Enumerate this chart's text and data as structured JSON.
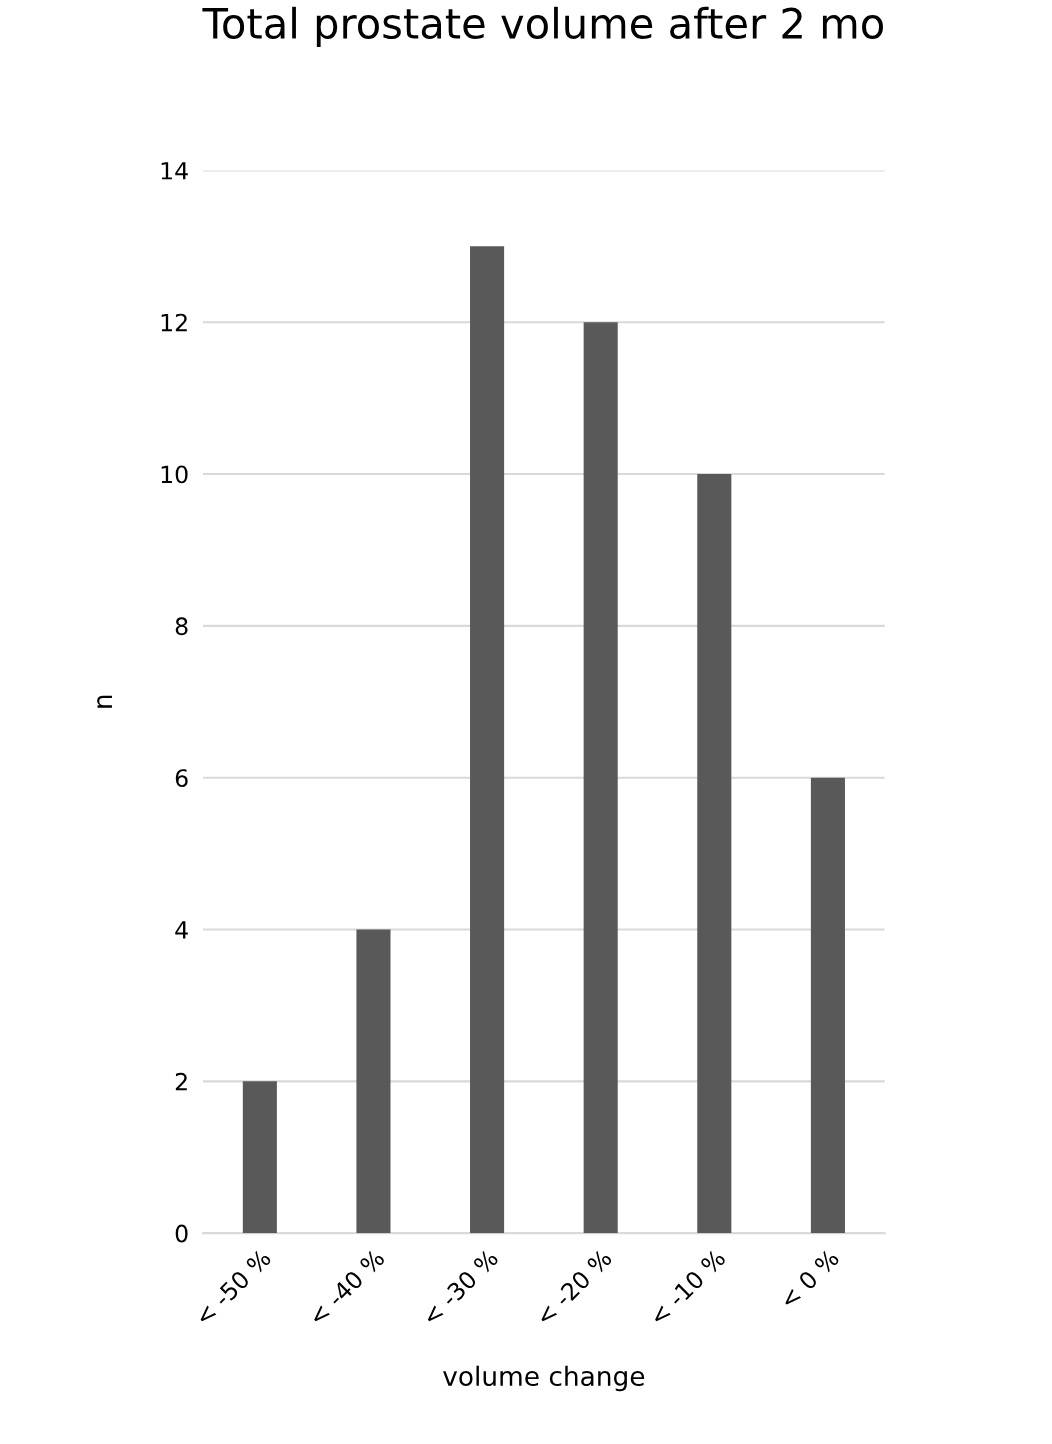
{
  "chart_data": {
    "type": "bar",
    "title": "Total prostate volume after 2 mo",
    "xlabel": "volume change",
    "ylabel": "n",
    "categories": [
      "< -50 %",
      "< -40 %",
      "< -30 %",
      "< -20 %",
      "< -10 %",
      "< 0 %"
    ],
    "values": [
      2,
      4,
      13,
      12,
      10,
      6
    ],
    "color": "#595959",
    "ylim": [
      0,
      14
    ],
    "yticks": [
      0,
      2,
      4,
      6,
      8,
      10,
      12,
      14
    ],
    "grid": "y",
    "legend": false
  }
}
